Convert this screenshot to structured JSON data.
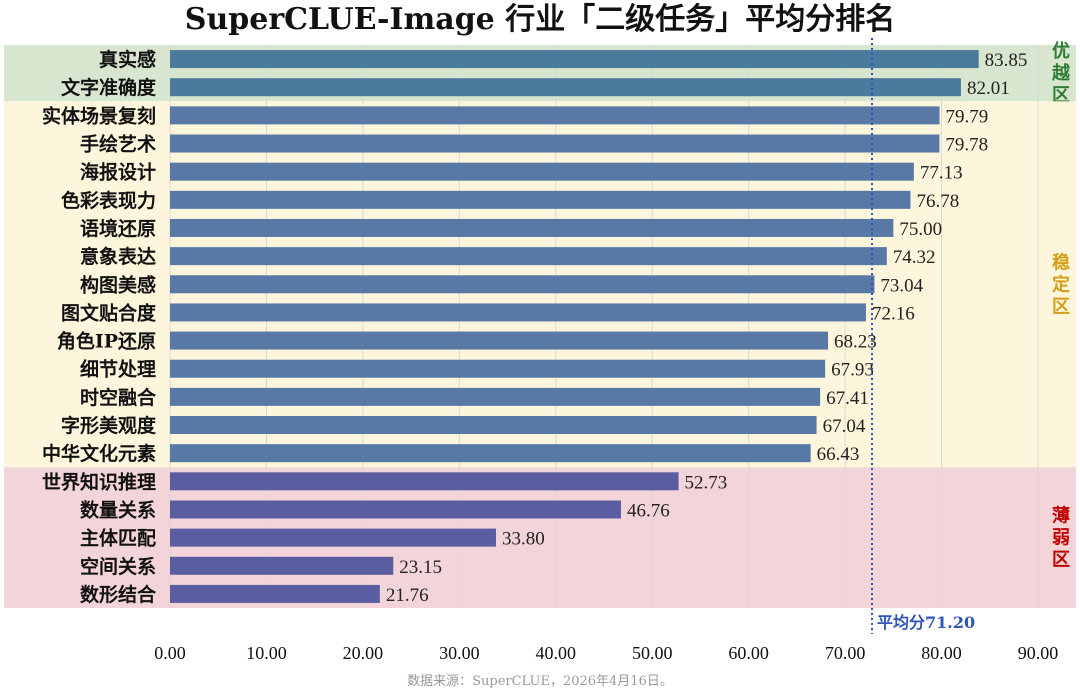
{
  "title": "SuperCLUE-Image 行业「二级任务」平均分排名",
  "source_note": "数据来源：SuperCLUE，2026年4月16日。",
  "average_label": "平均分71.20",
  "zones": [
    {
      "label": "优越区",
      "color": "#d8e6cf",
      "text_color": "#2e7d32",
      "from": 0,
      "to": 1
    },
    {
      "label": "稳定区",
      "color": "#fdf6dc",
      "text_color": "#d4a017",
      "from": 2,
      "to": 14
    },
    {
      "label": "薄弱区",
      "color": "#f3d4d8",
      "text_color": "#c00000",
      "from": 15,
      "to": 19
    }
  ],
  "chart_data": {
    "type": "bar",
    "orientation": "horizontal",
    "title": "SuperCLUE-Image 行业「二级任务」平均分排名",
    "categories": [
      "真实感",
      "文字准确度",
      "实体场景复刻",
      "手绘艺术",
      "海报设计",
      "色彩表现力",
      "语境还原",
      "意象表达",
      "构图美感",
      "图文贴合度",
      "角色IP还原",
      "细节处理",
      "时空融合",
      "字形美观度",
      "中华文化元素",
      "世界知识推理",
      "数量关系",
      "主体匹配",
      "空间关系",
      "数形结合"
    ],
    "values": [
      83.85,
      82.01,
      79.79,
      79.78,
      77.13,
      76.78,
      75.0,
      74.32,
      73.04,
      72.16,
      68.23,
      67.93,
      67.41,
      67.04,
      66.43,
      52.73,
      46.76,
      33.8,
      23.15,
      21.76
    ],
    "value_labels": [
      "83.85",
      "82.01",
      "79.79",
      "79.78",
      "77.13",
      "76.78",
      "75.00",
      "74.32",
      "73.04",
      "72.16",
      "68.23",
      "67.93",
      "67.41",
      "67.04",
      "66.43",
      "52.73",
      "46.76",
      "33.80",
      "23.15",
      "21.76"
    ],
    "bar_colors": [
      "#4a7a9c",
      "#4a7a9c",
      "#5878a6",
      "#5878a6",
      "#5878a6",
      "#5878a6",
      "#5878a6",
      "#5878a6",
      "#5878a6",
      "#5878a6",
      "#5878a6",
      "#5878a6",
      "#5878a6",
      "#5878a6",
      "#5878a6",
      "#5a5ea0",
      "#5a5ea0",
      "#5a5ea0",
      "#5a5ea0",
      "#5a5ea0"
    ],
    "average": 71.2,
    "xlim": [
      0,
      90
    ],
    "xticks": [
      "0.00",
      "10.00",
      "20.00",
      "30.00",
      "40.00",
      "50.00",
      "60.00",
      "70.00",
      "80.00",
      "90.00"
    ],
    "xlabel": "",
    "ylabel": "",
    "grid": true
  }
}
